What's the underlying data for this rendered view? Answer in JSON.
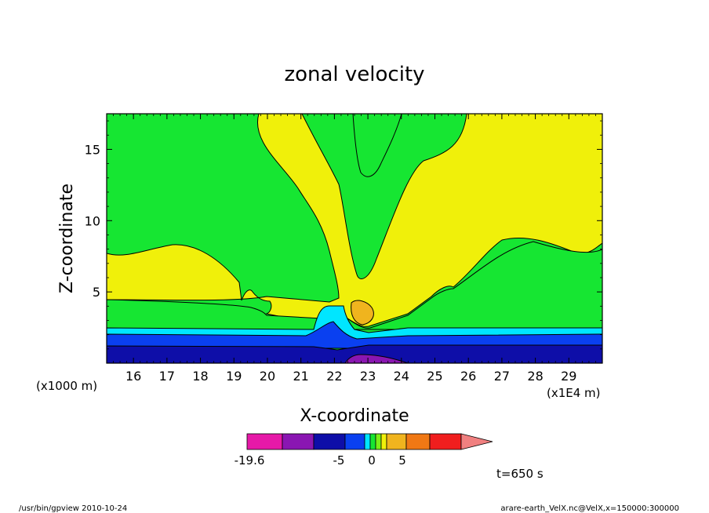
{
  "chart_data": {
    "type": "heatmap",
    "title": "zonal velocity",
    "xlabel": "X-coordinate",
    "ylabel": "Z-coordinate",
    "x_unit_left": "(x1000 m)",
    "x_unit_right": "(x1E4 m)",
    "xlim": [
      15.2,
      30.0
    ],
    "ylim": [
      0.0,
      17.5
    ],
    "x_ticks": [
      16,
      17,
      18,
      19,
      20,
      21,
      22,
      23,
      24,
      25,
      26,
      27,
      28,
      29
    ],
    "y_ticks": [
      5,
      10,
      15
    ],
    "colorbar": {
      "colors": [
        "#e619a8",
        "#8a16b2",
        "#0e0ea8",
        "#0a40f0",
        "#00e6ff",
        "#16e632",
        "#7af016",
        "#f0f00a",
        "#f0b41e",
        "#f07814",
        "#f01e1e",
        "#f08080"
      ],
      "labels": [
        "-19.6",
        "-5",
        "0",
        "5"
      ]
    },
    "regions": [
      {
        "name": "low-level easterly core",
        "value": "purple",
        "x": [
          22.4,
          24.2
        ],
        "z": [
          0.0,
          0.6
        ]
      },
      {
        "name": "surface negative layer",
        "value": "dark blue",
        "z": [
          0.0,
          1.2
        ]
      },
      {
        "name": "lower negative layer",
        "value": "blue",
        "z": [
          1.2,
          2.0
        ]
      },
      {
        "name": "weak negative layer",
        "value": "cyan",
        "z": [
          2.0,
          2.5
        ]
      },
      {
        "name": "plume",
        "value": "yellow",
        "x": [
          21.0,
          25.0
        ],
        "z": [
          2.5,
          17.5
        ]
      },
      {
        "name": "positive core",
        "value": "orange",
        "x": [
          22.4,
          23.2
        ],
        "z": [
          2.8,
          4.2
        ]
      }
    ]
  },
  "time_label": "t=650 s",
  "footer": {
    "left": "/usr/bin/gpview   2010-10-24",
    "right": "arare-earth_VelX.nc@VelX,x=150000:300000"
  }
}
